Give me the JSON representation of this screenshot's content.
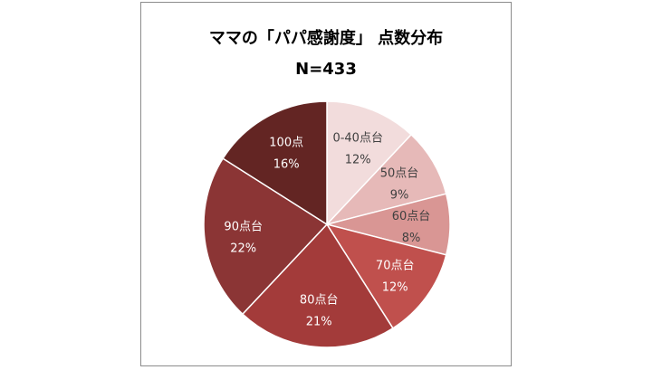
{
  "chart_data": {
    "type": "pie",
    "title": "ママの「パパ感謝度」 点数分布",
    "subtitle": "N=433",
    "categories": [
      "0-40点台",
      "50点台",
      "60点台",
      "70点台",
      "80点台",
      "90点台",
      "100点"
    ],
    "values": [
      12,
      9,
      8,
      12,
      21,
      22,
      16
    ],
    "value_labels": [
      "12%",
      "9%",
      "8%",
      "12%",
      "21%",
      "22%",
      "16%"
    ],
    "colors": [
      "#f2dcdc",
      "#e6b9b8",
      "#d99694",
      "#c0504d",
      "#a33b3a",
      "#8b3535",
      "#632523"
    ],
    "label_colors": [
      "#404040",
      "#404040",
      "#404040",
      "#ffffff",
      "#ffffff",
      "#ffffff",
      "#ffffff"
    ],
    "legend": "none"
  }
}
